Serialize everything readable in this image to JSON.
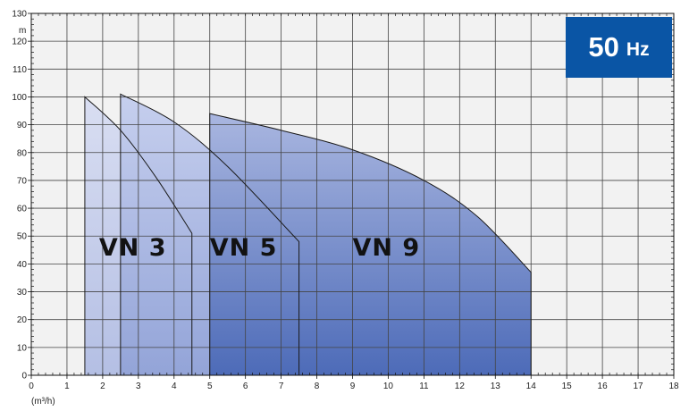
{
  "chart_data": {
    "type": "area",
    "x_unit": "(m³/h)",
    "y_unit": "m",
    "xlim": [
      0,
      18
    ],
    "ylim": [
      0,
      130
    ],
    "x_ticks": [
      0,
      1,
      2,
      3,
      4,
      5,
      6,
      7,
      8,
      9,
      10,
      11,
      12,
      13,
      14,
      15,
      16,
      17,
      18
    ],
    "y_ticks": [
      0,
      10,
      20,
      30,
      40,
      50,
      60,
      70,
      80,
      90,
      100,
      110,
      120,
      130
    ],
    "grid": true,
    "series": [
      {
        "name": "VN 3",
        "color": "#c3cbe8",
        "x": [
          1.5,
          2.5,
          3.5,
          4.5
        ],
        "y": [
          100,
          88,
          71,
          51
        ],
        "qmin": 1.5,
        "qmax": 4.5
      },
      {
        "name": "VN 5",
        "color": "#a5b2de",
        "x": [
          2.5,
          4.0,
          5.5,
          7.5
        ],
        "y": [
          101,
          91,
          75,
          48
        ],
        "qmin": 2.5,
        "qmax": 7.5
      },
      {
        "name": "VN 9",
        "color": "#6a83c4",
        "x": [
          5,
          7,
          9,
          11,
          12.5,
          14
        ],
        "y": [
          94,
          88,
          81,
          70,
          57,
          37
        ],
        "qmin": 5,
        "qmax": 14
      }
    ],
    "badge": {
      "value": "50",
      "unit": "Hz",
      "color": "#0a55a5"
    }
  }
}
